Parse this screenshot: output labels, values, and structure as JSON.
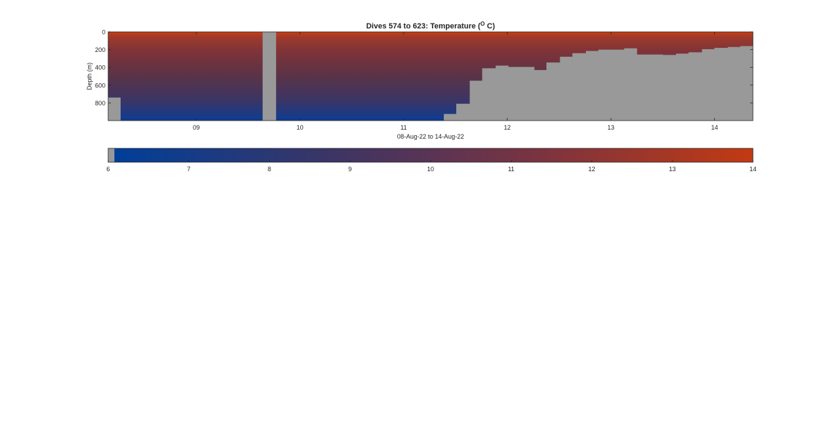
{
  "chart_data": [
    {
      "type": "heatmap",
      "title": "Dives 574 to 623: Temperature (",
      "title_sup": "O",
      "title_tail": " C)",
      "xlabel": "08-Aug-22 to 14-Aug-22",
      "ylabel": "Depth (m)",
      "x_ticks": [
        "09",
        "10",
        "11",
        "12",
        "13",
        "14"
      ],
      "x_tick_values": [
        9,
        10,
        11,
        12,
        13,
        14
      ],
      "xlim": [
        8.15,
        14.37
      ],
      "y_ticks": [
        "0",
        "200",
        "400",
        "600",
        "800"
      ],
      "y_tick_values": [
        0,
        200,
        400,
        600,
        800
      ],
      "ylim": [
        0,
        1000
      ],
      "y_reversed": true,
      "no_data_color": "#999999",
      "colormap": [
        "#003f99",
        "#3a3566",
        "#7a3341",
        "#c23a12"
      ],
      "surface_temperature": 13.5,
      "bottom_temperature": 6.8,
      "no_data_regions": [
        {
          "x0": 8.15,
          "x1": 8.27,
          "depth_from": 740,
          "depth_to": 1000
        },
        {
          "x0": 9.64,
          "x1": 9.77,
          "depth_from": 0,
          "depth_to": 1000
        }
      ],
      "profiles": [
        {
          "x0": 11.39,
          "x1": 11.51,
          "max_depth": 925
        },
        {
          "x0": 11.51,
          "x1": 11.64,
          "max_depth": 810
        },
        {
          "x0": 11.64,
          "x1": 11.76,
          "max_depth": 550
        },
        {
          "x0": 11.76,
          "x1": 11.89,
          "max_depth": 410
        },
        {
          "x0": 11.89,
          "x1": 12.01,
          "max_depth": 380
        },
        {
          "x0": 12.01,
          "x1": 12.26,
          "max_depth": 395
        },
        {
          "x0": 12.26,
          "x1": 12.38,
          "max_depth": 430
        },
        {
          "x0": 12.38,
          "x1": 12.51,
          "max_depth": 345
        },
        {
          "x0": 12.51,
          "x1": 12.63,
          "max_depth": 280
        },
        {
          "x0": 12.63,
          "x1": 12.76,
          "max_depth": 240
        },
        {
          "x0": 12.76,
          "x1": 12.88,
          "max_depth": 215
        },
        {
          "x0": 12.88,
          "x1": 13.13,
          "max_depth": 200
        },
        {
          "x0": 13.13,
          "x1": 13.25,
          "max_depth": 185
        },
        {
          "x0": 13.25,
          "x1": 13.5,
          "max_depth": 255
        },
        {
          "x0": 13.5,
          "x1": 13.63,
          "max_depth": 260
        },
        {
          "x0": 13.63,
          "x1": 13.75,
          "max_depth": 245
        },
        {
          "x0": 13.75,
          "x1": 13.88,
          "max_depth": 230
        },
        {
          "x0": 13.88,
          "x1": 14.0,
          "max_depth": 195
        },
        {
          "x0": 14.0,
          "x1": 14.13,
          "max_depth": 180
        },
        {
          "x0": 14.13,
          "x1": 14.25,
          "max_depth": 170
        },
        {
          "x0": 14.25,
          "x1": 14.37,
          "max_depth": 160
        }
      ]
    },
    {
      "type": "colorbar",
      "ticks": [
        "6",
        "7",
        "8",
        "9",
        "10",
        "11",
        "12",
        "13",
        "14"
      ],
      "tick_values": [
        6,
        7,
        8,
        9,
        10,
        11,
        12,
        13,
        14
      ],
      "range": [
        6,
        14
      ],
      "no_data_swatch_color": "#999999",
      "colormap": [
        "#003f99",
        "#3a3566",
        "#7a3341",
        "#c23a12"
      ]
    }
  ]
}
